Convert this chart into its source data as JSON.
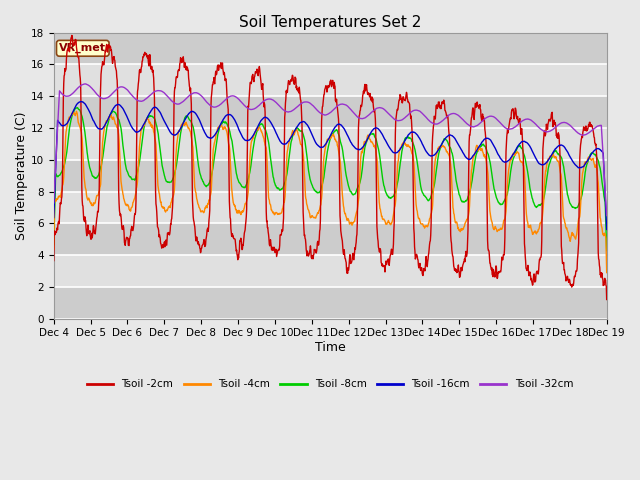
{
  "title": "Soil Temperatures Set 2",
  "xlabel": "Time",
  "ylabel": "Soil Temperature (C)",
  "ylim": [
    0,
    18
  ],
  "colors": {
    "Tsoil -2cm": "#cc0000",
    "Tsoil -4cm": "#ff8800",
    "Tsoil -8cm": "#00cc00",
    "Tsoil -16cm": "#0000cc",
    "Tsoil -32cm": "#9933cc"
  },
  "legend_labels": [
    "Tsoil -2cm",
    "Tsoil -4cm",
    "Tsoil -8cm",
    "Tsoil -16cm",
    "Tsoil -32cm"
  ],
  "x_tick_labels": [
    "Dec 4",
    "Dec 5",
    "Dec 6",
    "Dec 7",
    "Dec 8",
    "Dec 9",
    "Dec 10",
    "Dec 11",
    "Dec 12",
    "Dec 13",
    "Dec 14",
    "Dec 15",
    "Dec 16",
    "Dec 17",
    "Dec 18",
    "Dec 19"
  ],
  "annotation_text": "VR_met",
  "title_fontsize": 11,
  "axis_label_fontsize": 9,
  "tick_fontsize": 7.5,
  "num_points": 1440
}
